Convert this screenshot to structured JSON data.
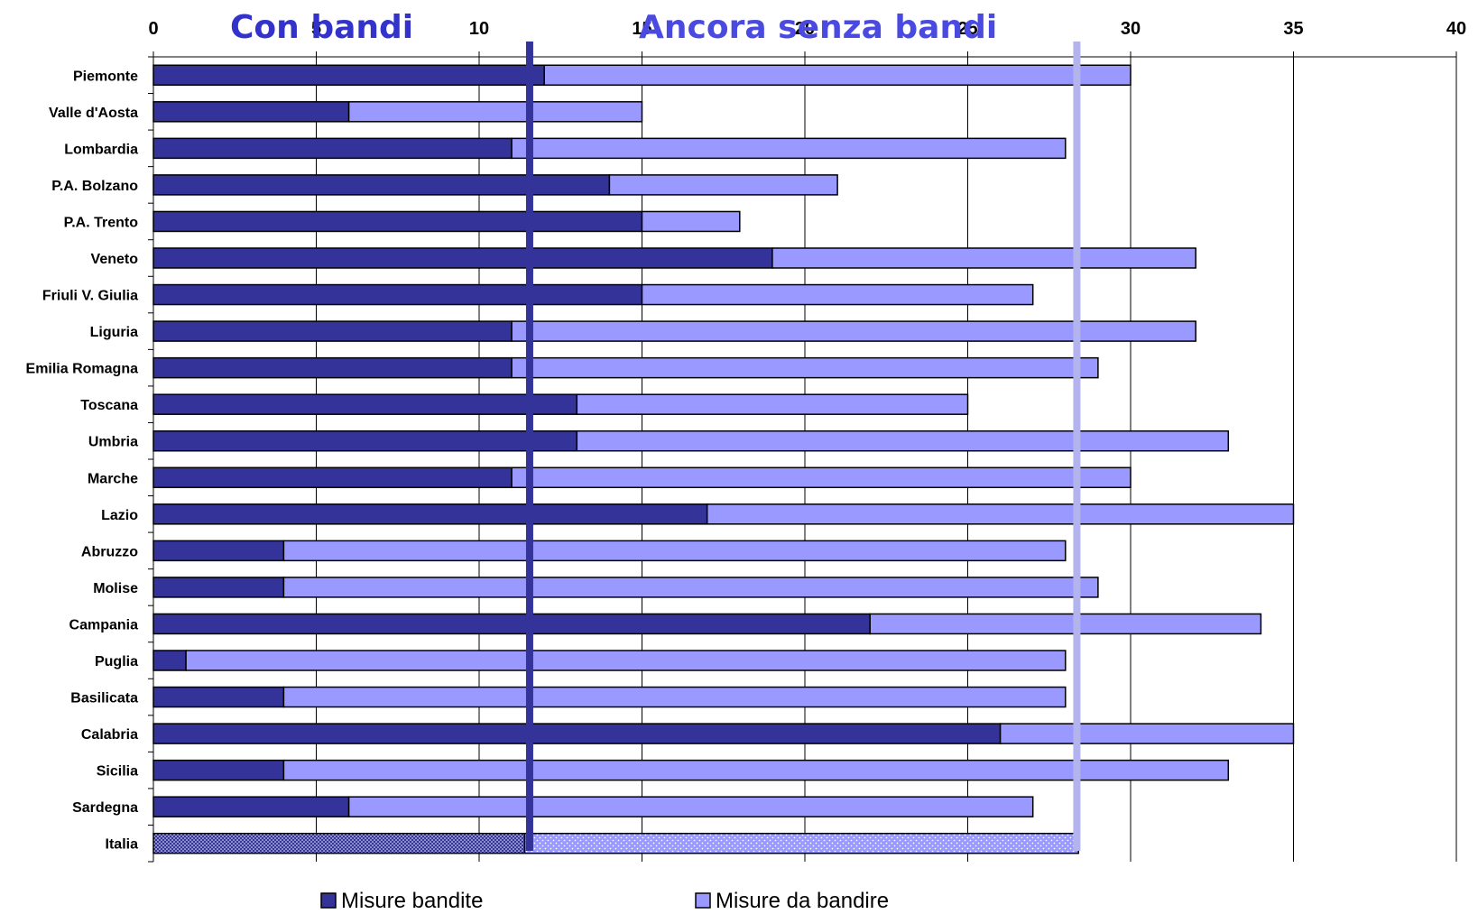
{
  "chart_data": {
    "type": "bar",
    "orientation": "horizontal",
    "stacked": true,
    "title": "",
    "xlabel": "",
    "ylabel": "",
    "xlim": [
      0,
      40
    ],
    "xticks": [
      0,
      5,
      10,
      15,
      20,
      25,
      30,
      35,
      40
    ],
    "xtick_labels": [
      "0",
      "5",
      "10",
      "15",
      "20",
      "25",
      "30",
      "35",
      "40"
    ],
    "grid": true,
    "legend_position": "bottom",
    "categories": [
      "Piemonte",
      "Valle d'Aosta",
      "Lombardia",
      "P.A. Bolzano",
      "P.A. Trento",
      "Veneto",
      "Friuli V. Giulia",
      "Liguria",
      "Emilia Romagna",
      "Toscana",
      "Umbria",
      "Marche",
      "Lazio",
      "Abruzzo",
      "Molise",
      "Campania",
      "Puglia",
      "Basilicata",
      "Calabria",
      "Sicilia",
      "Sardegna",
      "Italia"
    ],
    "series": [
      {
        "name": "Misure bandite",
        "color": "#333399",
        "values": [
          12,
          6,
          11,
          14,
          15,
          19,
          15,
          11,
          11,
          13,
          13,
          11,
          17,
          4,
          4,
          22,
          1,
          4,
          26,
          4,
          6,
          11.4
        ]
      },
      {
        "name": "Misure da bandire",
        "color": "#9999ff",
        "values": [
          18,
          9,
          17,
          7,
          3,
          13,
          12,
          21,
          18,
          12,
          20,
          19,
          18,
          24,
          25,
          12,
          27,
          24,
          9,
          29,
          21,
          17
        ]
      }
    ],
    "reference_lines": [
      {
        "value": 11.55,
        "color": "#333399",
        "label": "Con bandi"
      },
      {
        "value": 28.35,
        "color": "#b3b3ee",
        "label": "Ancora senza bandi"
      }
    ]
  }
}
